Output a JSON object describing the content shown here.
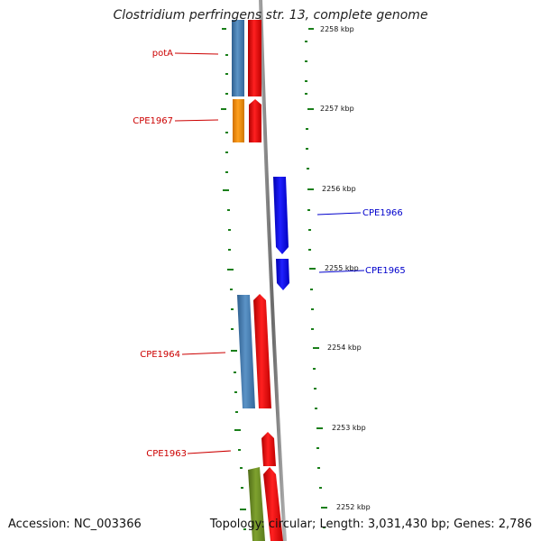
{
  "title": "Clostridium perfringens str. 13, complete genome",
  "footer": {
    "accession": "Accession: NC_003366",
    "summary": "Topology: circular; Length: 3,031,430 bp; Genes: 2,786"
  },
  "scale_labels": [
    "2258 kbp",
    "2257 kbp",
    "2256 kbp",
    "2255 kbp",
    "2254 kbp",
    "2253 kbp",
    "2252 kbp"
  ],
  "genes": [
    {
      "name": "potA",
      "strand": "forward"
    },
    {
      "name": "CPE1967",
      "strand": "forward"
    },
    {
      "name": "CPE1966",
      "strand": "reverse"
    },
    {
      "name": "CPE1965",
      "strand": "reverse"
    },
    {
      "name": "CPE1964",
      "strand": "forward"
    },
    {
      "name": "CPE1963",
      "strand": "forward"
    }
  ],
  "colors": {
    "forward_label": "#cc0000",
    "reverse_label": "#0000cc",
    "cds": "#ff0000",
    "gene_steelblue": "#4682b4",
    "gene_orange": "#ff8c00",
    "gene_blue": "#0000ff",
    "gene_olive": "#6b8e23",
    "tick": "#1a7f1a",
    "backbone": "#808080"
  }
}
